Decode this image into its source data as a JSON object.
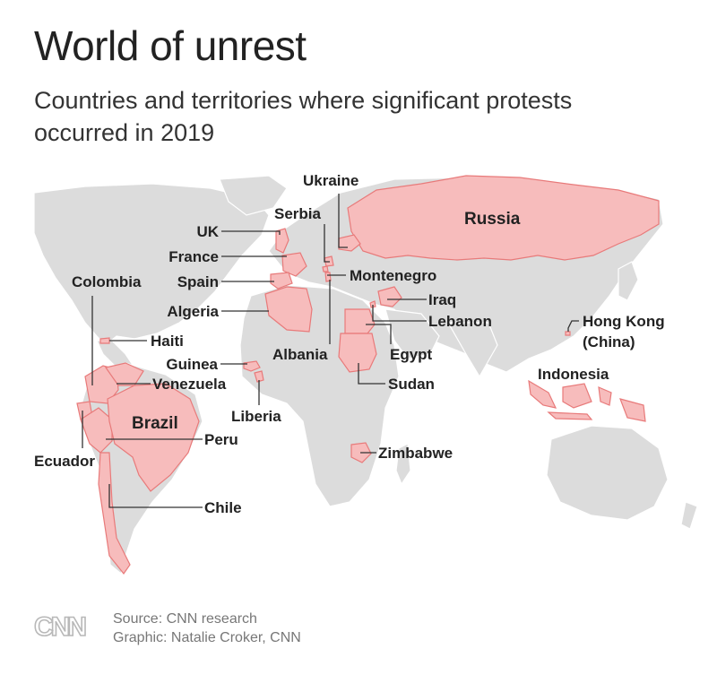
{
  "header": {
    "title": "World of unrest",
    "subtitle": "Countries and territories where significant protests occurred in 2019"
  },
  "colors": {
    "land": "#dcdcdc",
    "highlight": "#f7bcbc",
    "highlight_border": "#e87a7a",
    "leader": "#333333"
  },
  "labels": {
    "ukraine": "Ukraine",
    "russia": "Russia",
    "serbia": "Serbia",
    "uk": "UK",
    "france": "France",
    "spain": "Spain",
    "colombia": "Colombia",
    "montenegro": "Montenegro",
    "iraq": "Iraq",
    "lebanon": "Lebanon",
    "algeria": "Algeria",
    "haiti": "Haiti",
    "hong_kong": "Hong Kong",
    "hong_kong_sub": "(China)",
    "guinea": "Guinea",
    "albania": "Albania",
    "egypt": "Egypt",
    "venezuela": "Venezuela",
    "sudan": "Sudan",
    "indonesia": "Indonesia",
    "liberia": "Liberia",
    "brazil": "Brazil",
    "peru": "Peru",
    "ecuador": "Ecuador",
    "zimbabwe": "Zimbabwe",
    "chile": "Chile"
  },
  "footer": {
    "logo": "CNN",
    "source": "Source: CNN research",
    "graphic": "Graphic: Natalie Croker, CNN"
  }
}
